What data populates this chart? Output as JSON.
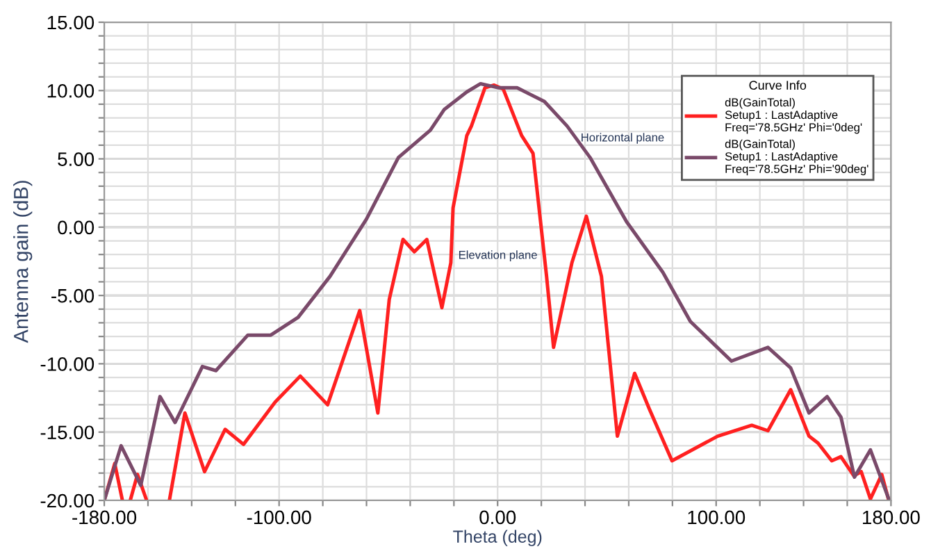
{
  "chart_data": {
    "type": "line",
    "xlabel": "Theta (deg)",
    "ylabel": "Antenna gain (dB)",
    "legend_title": "Curve Info",
    "legend": "top right",
    "xlim": [
      -180,
      180
    ],
    "xticks": [
      {
        "value": -180,
        "label": "-180.00"
      },
      {
        "value": -160,
        "label": null
      },
      {
        "value": -140,
        "label": null
      },
      {
        "value": -120,
        "label": null
      },
      {
        "value": -100,
        "label": "-100.00"
      },
      {
        "value": -80,
        "label": null
      },
      {
        "value": -60,
        "label": null
      },
      {
        "value": -40,
        "label": null
      },
      {
        "value": -20,
        "label": null
      },
      {
        "value": 0,
        "label": "0.00"
      },
      {
        "value": 20,
        "label": null
      },
      {
        "value": 40,
        "label": null
      },
      {
        "value": 60,
        "label": null
      },
      {
        "value": 80,
        "label": null
      },
      {
        "value": 100,
        "label": "100.00"
      },
      {
        "value": 120,
        "label": null
      },
      {
        "value": 140,
        "label": null
      },
      {
        "value": 160,
        "label": null
      },
      {
        "value": 180,
        "label": "180.00"
      }
    ],
    "ylim": [
      -20,
      15
    ],
    "yticks": [
      {
        "value": -20,
        "label": "-20.00"
      },
      {
        "value": -19,
        "label": null
      },
      {
        "value": -18,
        "label": null
      },
      {
        "value": -17,
        "label": null
      },
      {
        "value": -16,
        "label": null
      },
      {
        "value": -15,
        "label": "-15.00"
      },
      {
        "value": -14,
        "label": null
      },
      {
        "value": -13,
        "label": null
      },
      {
        "value": -12,
        "label": null
      },
      {
        "value": -11,
        "label": null
      },
      {
        "value": -10,
        "label": "-10.00"
      },
      {
        "value": -9,
        "label": null
      },
      {
        "value": -8,
        "label": null
      },
      {
        "value": -7,
        "label": null
      },
      {
        "value": -6,
        "label": null
      },
      {
        "value": -5,
        "label": "-5.00"
      },
      {
        "value": -4,
        "label": null
      },
      {
        "value": -3,
        "label": null
      },
      {
        "value": -2,
        "label": null
      },
      {
        "value": -1,
        "label": null
      },
      {
        "value": 0,
        "label": "0.00"
      },
      {
        "value": 1,
        "label": null
      },
      {
        "value": 2,
        "label": null
      },
      {
        "value": 3,
        "label": null
      },
      {
        "value": 4,
        "label": null
      },
      {
        "value": 5,
        "label": "5.00"
      },
      {
        "value": 6,
        "label": null
      },
      {
        "value": 7,
        "label": null
      },
      {
        "value": 8,
        "label": null
      },
      {
        "value": 9,
        "label": null
      },
      {
        "value": 10,
        "label": "10.00"
      },
      {
        "value": 11,
        "label": null
      },
      {
        "value": 12,
        "label": null
      },
      {
        "value": 13,
        "label": null
      },
      {
        "value": 14,
        "label": null
      },
      {
        "value": 15,
        "label": "15.00"
      }
    ],
    "grid": true,
    "marker": "none",
    "line_style": "solid",
    "series": [
      {
        "name": "dB(GainTotal)\nSetup1 : LastAdaptive\nFreq='78.5GHz' Phi='0deg'",
        "color": "#ff2020",
        "x": [
          -180,
          -175.2,
          -171.7,
          -170,
          -168.1,
          -164.8,
          -160.6,
          -155,
          -150.2,
          -143.1,
          -134.1,
          -124.7,
          -116.3,
          -101.8,
          -90.3,
          -77.8,
          -63.1,
          -54.8,
          -49.6,
          -43.3,
          -38.1,
          -32.4,
          -25.5,
          -21.4,
          -20.4,
          -14.1,
          -12,
          -5.8,
          -1.6,
          2.6,
          11,
          16.2,
          22.4,
          25.6,
          34,
          40.6,
          47.5,
          54.8,
          62.7,
          69.4,
          79.8,
          100.7,
          116.3,
          123.7,
          134.1,
          142.5,
          146.6,
          152.9,
          157.1,
          163,
          166.4,
          170.6,
          175.8,
          179
        ],
        "values": [
          -20,
          -17.3,
          -20,
          null,
          -20,
          -18.1,
          -20,
          null,
          -20,
          -13.6,
          -17.9,
          -14.8,
          -15.9,
          -12.8,
          -10.9,
          -13.0,
          -6.1,
          -13.6,
          -5.3,
          -0.9,
          -1.8,
          -0.9,
          -5.9,
          -2.6,
          1.4,
          6.7,
          7.4,
          10.2,
          10.4,
          10.1,
          6.7,
          5.4,
          -3.6,
          -8.8,
          -2.6,
          0.8,
          -3.6,
          -15.3,
          -10.7,
          -13.3,
          -17.1,
          -15.3,
          -14.5,
          -14.9,
          -11.9,
          -15.3,
          -15.8,
          -17.1,
          -16.8,
          -18.2,
          -17.9,
          -19.9,
          -18.1,
          -20
        ]
      },
      {
        "name": "dB(GainTotal)\nSetup1 : LastAdaptive\nFreq='78.5GHz' Phi='90deg'",
        "color": "#7a4a6a",
        "x": [
          -180,
          -172.3,
          -163.3,
          -154.5,
          -147.6,
          -135.1,
          -128.9,
          -114.3,
          -103.8,
          -91.3,
          -76.7,
          -60,
          -45.4,
          -30.8,
          -24.5,
          -14.1,
          -7.8,
          0.5,
          8.9,
          21.4,
          31.8,
          42.3,
          59,
          75.6,
          88.2,
          107,
          123.7,
          134.1,
          142.5,
          150.8,
          157.1,
          163.3,
          170.6,
          179
        ],
        "values": [
          -20,
          -16.0,
          -18.9,
          -12.4,
          -14.3,
          -10.2,
          -10.5,
          -7.9,
          -7.9,
          -6.6,
          -3.6,
          0.6,
          5.1,
          7.1,
          8.6,
          9.9,
          10.5,
          10.2,
          10.2,
          9.2,
          7.4,
          5.1,
          0.4,
          -3.3,
          -6.9,
          -9.8,
          -8.8,
          -10.3,
          -13.6,
          -12.4,
          -13.9,
          -18.3,
          -16.3,
          -19.9
        ]
      }
    ],
    "annotations": [
      {
        "text": "Horizontal plane",
        "x": 38,
        "y": 6.5
      },
      {
        "text": "Elevation plane",
        "x": -18,
        "y": -2.1
      }
    ]
  }
}
